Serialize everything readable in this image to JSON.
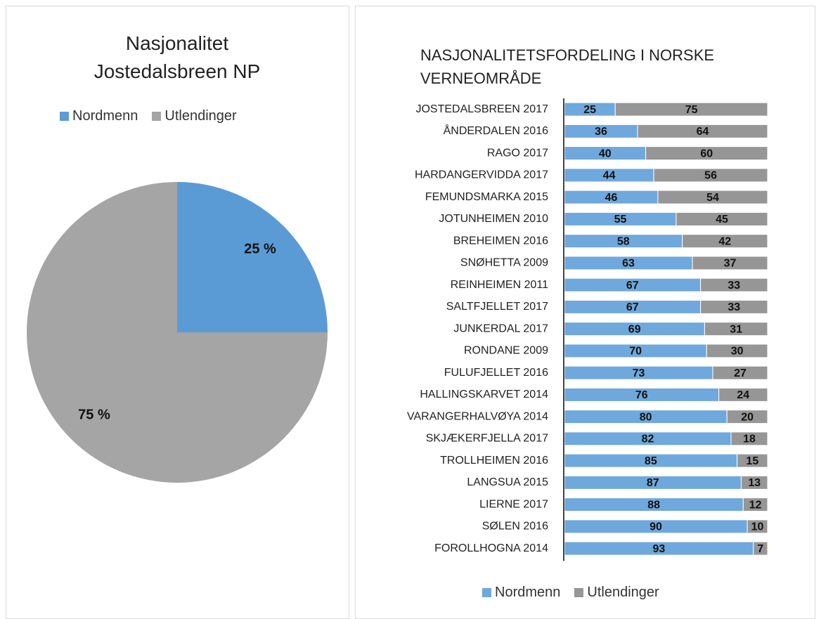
{
  "chart_data": [
    {
      "type": "pie",
      "title": "Nasjonalitet Jostedalsbreen NP",
      "categories": [
        "Nordmenn",
        "Utlendinger"
      ],
      "values": [
        25,
        75
      ],
      "value_labels": [
        "25 %",
        "75 %"
      ],
      "colors": [
        "#5b9bd5",
        "#a5a5a5"
      ],
      "legend": "top"
    },
    {
      "type": "stacked-bar-horizontal",
      "title": "NASJONALITETSFORDELING I NORSKE VERNEOMRÅDE",
      "categories": [
        "JOSTEDALSBREEN 2017",
        "ÅNDERDALEN 2016",
        "RAGO 2017",
        "HARDANGERVIDDA 2017",
        "FEMUNDSMARKA 2015",
        "JOTUNHEIMEN 2010",
        "BREHEIMEN 2016",
        "SNØHETTA 2009",
        "REINHEIMEN 2011",
        "SALTFJELLET 2017",
        "JUNKERDAL 2017",
        "RONDANE 2009",
        "FULUFJELLET 2016",
        "HALLINGSKARVET 2014",
        "VARANGERHALVØYA 2014",
        "SKJÆKERFJELLA 2017",
        "TROLLHEIMEN 2016",
        "LANGSUA 2015",
        "LIERNE 2017",
        "SØLEN 2016",
        "FOROLLHOGNA 2014"
      ],
      "series": [
        {
          "name": "Nordmenn",
          "color": "#6fa8dc",
          "values": [
            25,
            36,
            40,
            44,
            46,
            55,
            58,
            63,
            67,
            67,
            69,
            70,
            73,
            76,
            80,
            82,
            85,
            87,
            88,
            90,
            93
          ]
        },
        {
          "name": "Utlendinger",
          "color": "#969696",
          "values": [
            75,
            64,
            60,
            56,
            54,
            45,
            42,
            37,
            33,
            33,
            31,
            30,
            27,
            24,
            20,
            18,
            15,
            13,
            12,
            10,
            7
          ]
        }
      ],
      "xlim": [
        0,
        100
      ],
      "legend": "bottom"
    }
  ]
}
